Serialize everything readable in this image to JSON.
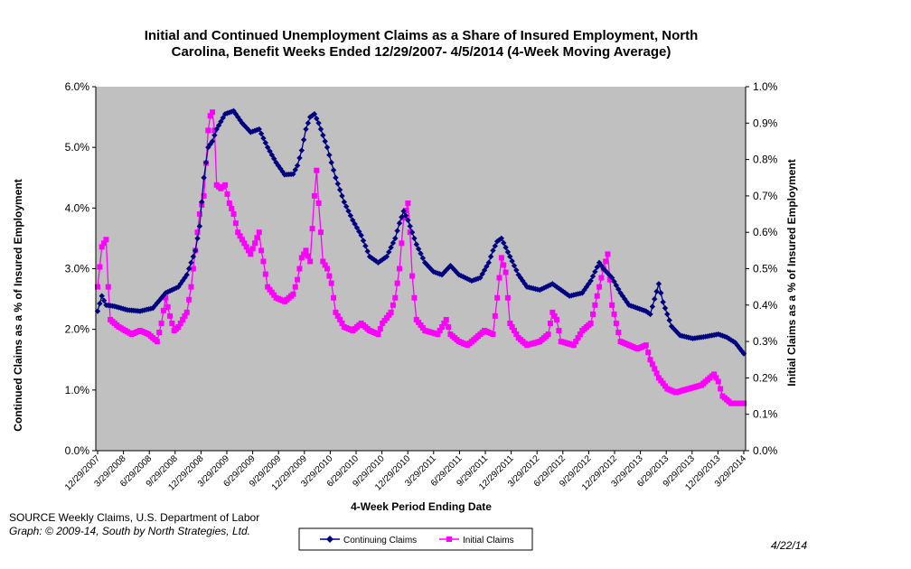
{
  "source": {
    "line1": "SOURCE  Weekly Claims, U.S. Department of Labor",
    "line2": "Graph: © 2009-14, South by North Strategies, Ltd."
  },
  "date_stamp": "4/22/14",
  "chart_data": {
    "type": "line",
    "title": [
      "Initial and Continued Unemployment Claims as a Share of Insured Employment, North",
      "Carolina, Benefit Weeks Ended 12/29/2007- 4/5/2014 (4-Week Moving Average)"
    ],
    "xlabel": "4-Week Period Ending Date",
    "ylabel_left": "Continued Claims as a % of Insured Employment",
    "ylabel_right": "Initial Claims as a % of Insured Employment",
    "ylim_left": [
      0,
      6
    ],
    "ylim_right": [
      0,
      1
    ],
    "yticks_left": [
      "0.0%",
      "1.0%",
      "2.0%",
      "3.0%",
      "4.0%",
      "5.0%",
      "6.0%"
    ],
    "yticks_right": [
      "0.0%",
      "0.1%",
      "0.2%",
      "0.3%",
      "0.4%",
      "0.5%",
      "0.6%",
      "0.7%",
      "0.8%",
      "0.9%",
      "1.0%"
    ],
    "x_tick_labels": [
      "12/29/2007",
      "3/29/2008",
      "6/29/2008",
      "9/29/2008",
      "12/29/2008",
      "3/29/2009",
      "6/29/2009",
      "9/29/2009",
      "12/29/2009",
      "3/29/2010",
      "6/29/2010",
      "9/29/2010",
      "12/29/2010",
      "3/29/2011",
      "6/29/2011",
      "9/29/2011",
      "12/29/2011",
      "3/29/2012",
      "6/29/2012",
      "9/29/2012",
      "12/29/2012",
      "3/29/2013",
      "6/29/2013",
      "9/29/2013",
      "12/29/2013",
      "3/29/2014"
    ],
    "grid": false,
    "plot_background": "#c0c0c0",
    "legend_placement": "bottom-center",
    "series": [
      {
        "name": "Continuing Claims",
        "axis": "left",
        "color": "#000080",
        "marker": "diamond",
        "anchors": [
          [
            0,
            2.3
          ],
          [
            2,
            2.55
          ],
          [
            4,
            2.4
          ],
          [
            8,
            2.38
          ],
          [
            14,
            2.32
          ],
          [
            20,
            2.3
          ],
          [
            26,
            2.35
          ],
          [
            32,
            2.6
          ],
          [
            38,
            2.7
          ],
          [
            42,
            2.9
          ],
          [
            46,
            3.3
          ],
          [
            48,
            3.7
          ],
          [
            50,
            4.5
          ],
          [
            52,
            5.0
          ],
          [
            54,
            5.1
          ],
          [
            56,
            5.3
          ],
          [
            60,
            5.55
          ],
          [
            64,
            5.6
          ],
          [
            68,
            5.4
          ],
          [
            72,
            5.25
          ],
          [
            76,
            5.3
          ],
          [
            80,
            5.0
          ],
          [
            84,
            4.75
          ],
          [
            88,
            4.55
          ],
          [
            92,
            4.56
          ],
          [
            94,
            4.7
          ],
          [
            96,
            4.95
          ],
          [
            98,
            5.3
          ],
          [
            100,
            5.5
          ],
          [
            102,
            5.55
          ],
          [
            104,
            5.4
          ],
          [
            108,
            5.0
          ],
          [
            112,
            4.5
          ],
          [
            116,
            4.1
          ],
          [
            120,
            3.8
          ],
          [
            124,
            3.55
          ],
          [
            128,
            3.2
          ],
          [
            132,
            3.1
          ],
          [
            136,
            3.2
          ],
          [
            140,
            3.5
          ],
          [
            142,
            3.75
          ],
          [
            144,
            3.95
          ],
          [
            146,
            3.8
          ],
          [
            150,
            3.4
          ],
          [
            154,
            3.1
          ],
          [
            158,
            2.95
          ],
          [
            162,
            2.9
          ],
          [
            166,
            3.05
          ],
          [
            170,
            2.9
          ],
          [
            176,
            2.8
          ],
          [
            180,
            2.85
          ],
          [
            184,
            3.1
          ],
          [
            186,
            3.3
          ],
          [
            188,
            3.45
          ],
          [
            190,
            3.5
          ],
          [
            194,
            3.2
          ],
          [
            198,
            2.9
          ],
          [
            202,
            2.7
          ],
          [
            208,
            2.65
          ],
          [
            214,
            2.75
          ],
          [
            218,
            2.65
          ],
          [
            222,
            2.55
          ],
          [
            228,
            2.6
          ],
          [
            232,
            2.8
          ],
          [
            236,
            3.1
          ],
          [
            238,
            3.0
          ],
          [
            242,
            2.85
          ],
          [
            246,
            2.6
          ],
          [
            250,
            2.4
          ],
          [
            254,
            2.35
          ],
          [
            258,
            2.3
          ],
          [
            260,
            2.25
          ],
          [
            262,
            2.5
          ],
          [
            264,
            2.75
          ],
          [
            266,
            2.45
          ],
          [
            270,
            2.05
          ],
          [
            274,
            1.9
          ],
          [
            280,
            1.85
          ],
          [
            286,
            1.88
          ],
          [
            292,
            1.92
          ],
          [
            296,
            1.87
          ],
          [
            300,
            1.78
          ],
          [
            304,
            1.6
          ]
        ]
      },
      {
        "name": "Initial Claims",
        "axis": "right",
        "color": "#ff00ff",
        "marker": "square",
        "anchors": [
          [
            0,
            0.45
          ],
          [
            2,
            0.56
          ],
          [
            4,
            0.58
          ],
          [
            5,
            0.45
          ],
          [
            6,
            0.36
          ],
          [
            10,
            0.34
          ],
          [
            16,
            0.32
          ],
          [
            20,
            0.33
          ],
          [
            24,
            0.32
          ],
          [
            28,
            0.3
          ],
          [
            30,
            0.35
          ],
          [
            32,
            0.42
          ],
          [
            34,
            0.37
          ],
          [
            36,
            0.33
          ],
          [
            38,
            0.34
          ],
          [
            40,
            0.36
          ],
          [
            42,
            0.38
          ],
          [
            44,
            0.45
          ],
          [
            46,
            0.55
          ],
          [
            48,
            0.65
          ],
          [
            50,
            0.7
          ],
          [
            52,
            0.88
          ],
          [
            53,
            0.92
          ],
          [
            54,
            0.93
          ],
          [
            55,
            0.88
          ],
          [
            56,
            0.73
          ],
          [
            58,
            0.72
          ],
          [
            60,
            0.73
          ],
          [
            62,
            0.68
          ],
          [
            64,
            0.65
          ],
          [
            66,
            0.6
          ],
          [
            68,
            0.58
          ],
          [
            70,
            0.56
          ],
          [
            72,
            0.54
          ],
          [
            74,
            0.57
          ],
          [
            76,
            0.6
          ],
          [
            77,
            0.55
          ],
          [
            78,
            0.52
          ],
          [
            80,
            0.45
          ],
          [
            84,
            0.42
          ],
          [
            88,
            0.41
          ],
          [
            92,
            0.43
          ],
          [
            94,
            0.47
          ],
          [
            96,
            0.53
          ],
          [
            98,
            0.55
          ],
          [
            100,
            0.52
          ],
          [
            102,
            0.7
          ],
          [
            103,
            0.77
          ],
          [
            104,
            0.68
          ],
          [
            106,
            0.52
          ],
          [
            108,
            0.5
          ],
          [
            110,
            0.46
          ],
          [
            112,
            0.38
          ],
          [
            116,
            0.34
          ],
          [
            120,
            0.33
          ],
          [
            124,
            0.35
          ],
          [
            128,
            0.33
          ],
          [
            132,
            0.32
          ],
          [
            134,
            0.35
          ],
          [
            138,
            0.38
          ],
          [
            140,
            0.42
          ],
          [
            142,
            0.5
          ],
          [
            144,
            0.64
          ],
          [
            146,
            0.68
          ],
          [
            147,
            0.6
          ],
          [
            148,
            0.48
          ],
          [
            150,
            0.36
          ],
          [
            154,
            0.33
          ],
          [
            160,
            0.32
          ],
          [
            164,
            0.36
          ],
          [
            166,
            0.32
          ],
          [
            170,
            0.3
          ],
          [
            174,
            0.29
          ],
          [
            178,
            0.31
          ],
          [
            182,
            0.33
          ],
          [
            186,
            0.32
          ],
          [
            188,
            0.42
          ],
          [
            190,
            0.53
          ],
          [
            192,
            0.49
          ],
          [
            194,
            0.35
          ],
          [
            198,
            0.31
          ],
          [
            202,
            0.29
          ],
          [
            208,
            0.3
          ],
          [
            212,
            0.32
          ],
          [
            214,
            0.38
          ],
          [
            216,
            0.36
          ],
          [
            218,
            0.3
          ],
          [
            224,
            0.29
          ],
          [
            228,
            0.33
          ],
          [
            232,
            0.35
          ],
          [
            236,
            0.45
          ],
          [
            238,
            0.5
          ],
          [
            240,
            0.54
          ],
          [
            242,
            0.4
          ],
          [
            246,
            0.3
          ],
          [
            250,
            0.29
          ],
          [
            254,
            0.28
          ],
          [
            258,
            0.29
          ],
          [
            260,
            0.25
          ],
          [
            264,
            0.2
          ],
          [
            268,
            0.17
          ],
          [
            272,
            0.16
          ],
          [
            278,
            0.17
          ],
          [
            284,
            0.18
          ],
          [
            288,
            0.2
          ],
          [
            290,
            0.21
          ],
          [
            292,
            0.19
          ],
          [
            294,
            0.15
          ],
          [
            298,
            0.13
          ],
          [
            302,
            0.13
          ],
          [
            304,
            0.13
          ]
        ]
      }
    ]
  }
}
